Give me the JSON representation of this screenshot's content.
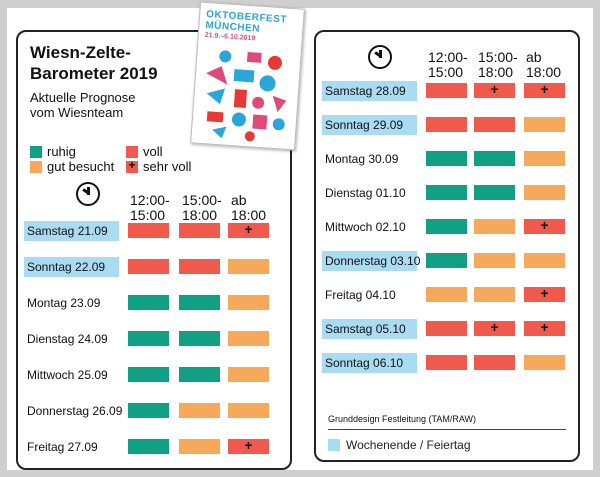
{
  "title_line1": "Wiesn-Zelte-",
  "title_line2": "Barometer 2019",
  "subtitle_line1": "Aktuelle Prognose",
  "subtitle_line2": "vom Wiesnteam",
  "poster": {
    "title_line1": "OKTOBERFEST",
    "title_line2": "MÜNCHEN",
    "dates": "21.9.–6.10.2019"
  },
  "legend": {
    "ruhig": "ruhig",
    "voll": "voll",
    "gut_besucht": "gut besucht",
    "sehr_voll": "sehr voll"
  },
  "colors": {
    "ruhig": "#12a085",
    "gut": "#f6a85b",
    "voll": "#ef5a4c",
    "weekend": "#a9dcf3"
  },
  "slots": {
    "s1a": "12:00-",
    "s1b": "15:00",
    "s2a": "15:00-",
    "s2b": "18:00",
    "s3a": "ab",
    "s3b": "18:00"
  },
  "plus": "+",
  "days": [
    {
      "label": "Samstag 21.09",
      "weekend": true,
      "cells": [
        "voll",
        "voll",
        "sehr_voll"
      ]
    },
    {
      "label": "Sonntag 22.09",
      "weekend": true,
      "cells": [
        "voll",
        "voll",
        "gut"
      ]
    },
    {
      "label": "Montag 23.09",
      "weekend": false,
      "cells": [
        "ruhig",
        "ruhig",
        "gut"
      ]
    },
    {
      "label": "Dienstag 24.09",
      "weekend": false,
      "cells": [
        "ruhig",
        "ruhig",
        "gut"
      ]
    },
    {
      "label": "Mittwoch 25.09",
      "weekend": false,
      "cells": [
        "ruhig",
        "ruhig",
        "gut"
      ]
    },
    {
      "label": "Donnerstag 26.09",
      "weekend": false,
      "cells": [
        "ruhig",
        "gut",
        "gut"
      ]
    },
    {
      "label": "Freitag 27.09",
      "weekend": false,
      "cells": [
        "ruhig",
        "gut",
        "sehr_voll"
      ]
    },
    {
      "label": "Samstag 28.09",
      "weekend": true,
      "cells": [
        "voll",
        "sehr_voll",
        "sehr_voll"
      ]
    },
    {
      "label": "Sonntag 29.09",
      "weekend": true,
      "cells": [
        "voll",
        "voll",
        "gut"
      ]
    },
    {
      "label": "Montag 30.09",
      "weekend": false,
      "cells": [
        "ruhig",
        "ruhig",
        "gut"
      ]
    },
    {
      "label": "Dienstag 01.10",
      "weekend": false,
      "cells": [
        "ruhig",
        "ruhig",
        "gut"
      ]
    },
    {
      "label": "Mittwoch 02.10",
      "weekend": false,
      "cells": [
        "ruhig",
        "gut",
        "sehr_voll"
      ]
    },
    {
      "label": "Donnerstag 03.10",
      "weekend": true,
      "cells": [
        "ruhig",
        "gut",
        "gut"
      ]
    },
    {
      "label": "Freitag 04.10",
      "weekend": false,
      "cells": [
        "gut",
        "gut",
        "sehr_voll"
      ]
    },
    {
      "label": "Samstag 05.10",
      "weekend": true,
      "cells": [
        "voll",
        "sehr_voll",
        "sehr_voll"
      ]
    },
    {
      "label": "Sonntag 06.10",
      "weekend": true,
      "cells": [
        "voll",
        "voll",
        "gut"
      ]
    }
  ],
  "credit": "Grunddesign Festleitung (TAM/RAW)",
  "footnote": "Wochenende / Feiertag"
}
